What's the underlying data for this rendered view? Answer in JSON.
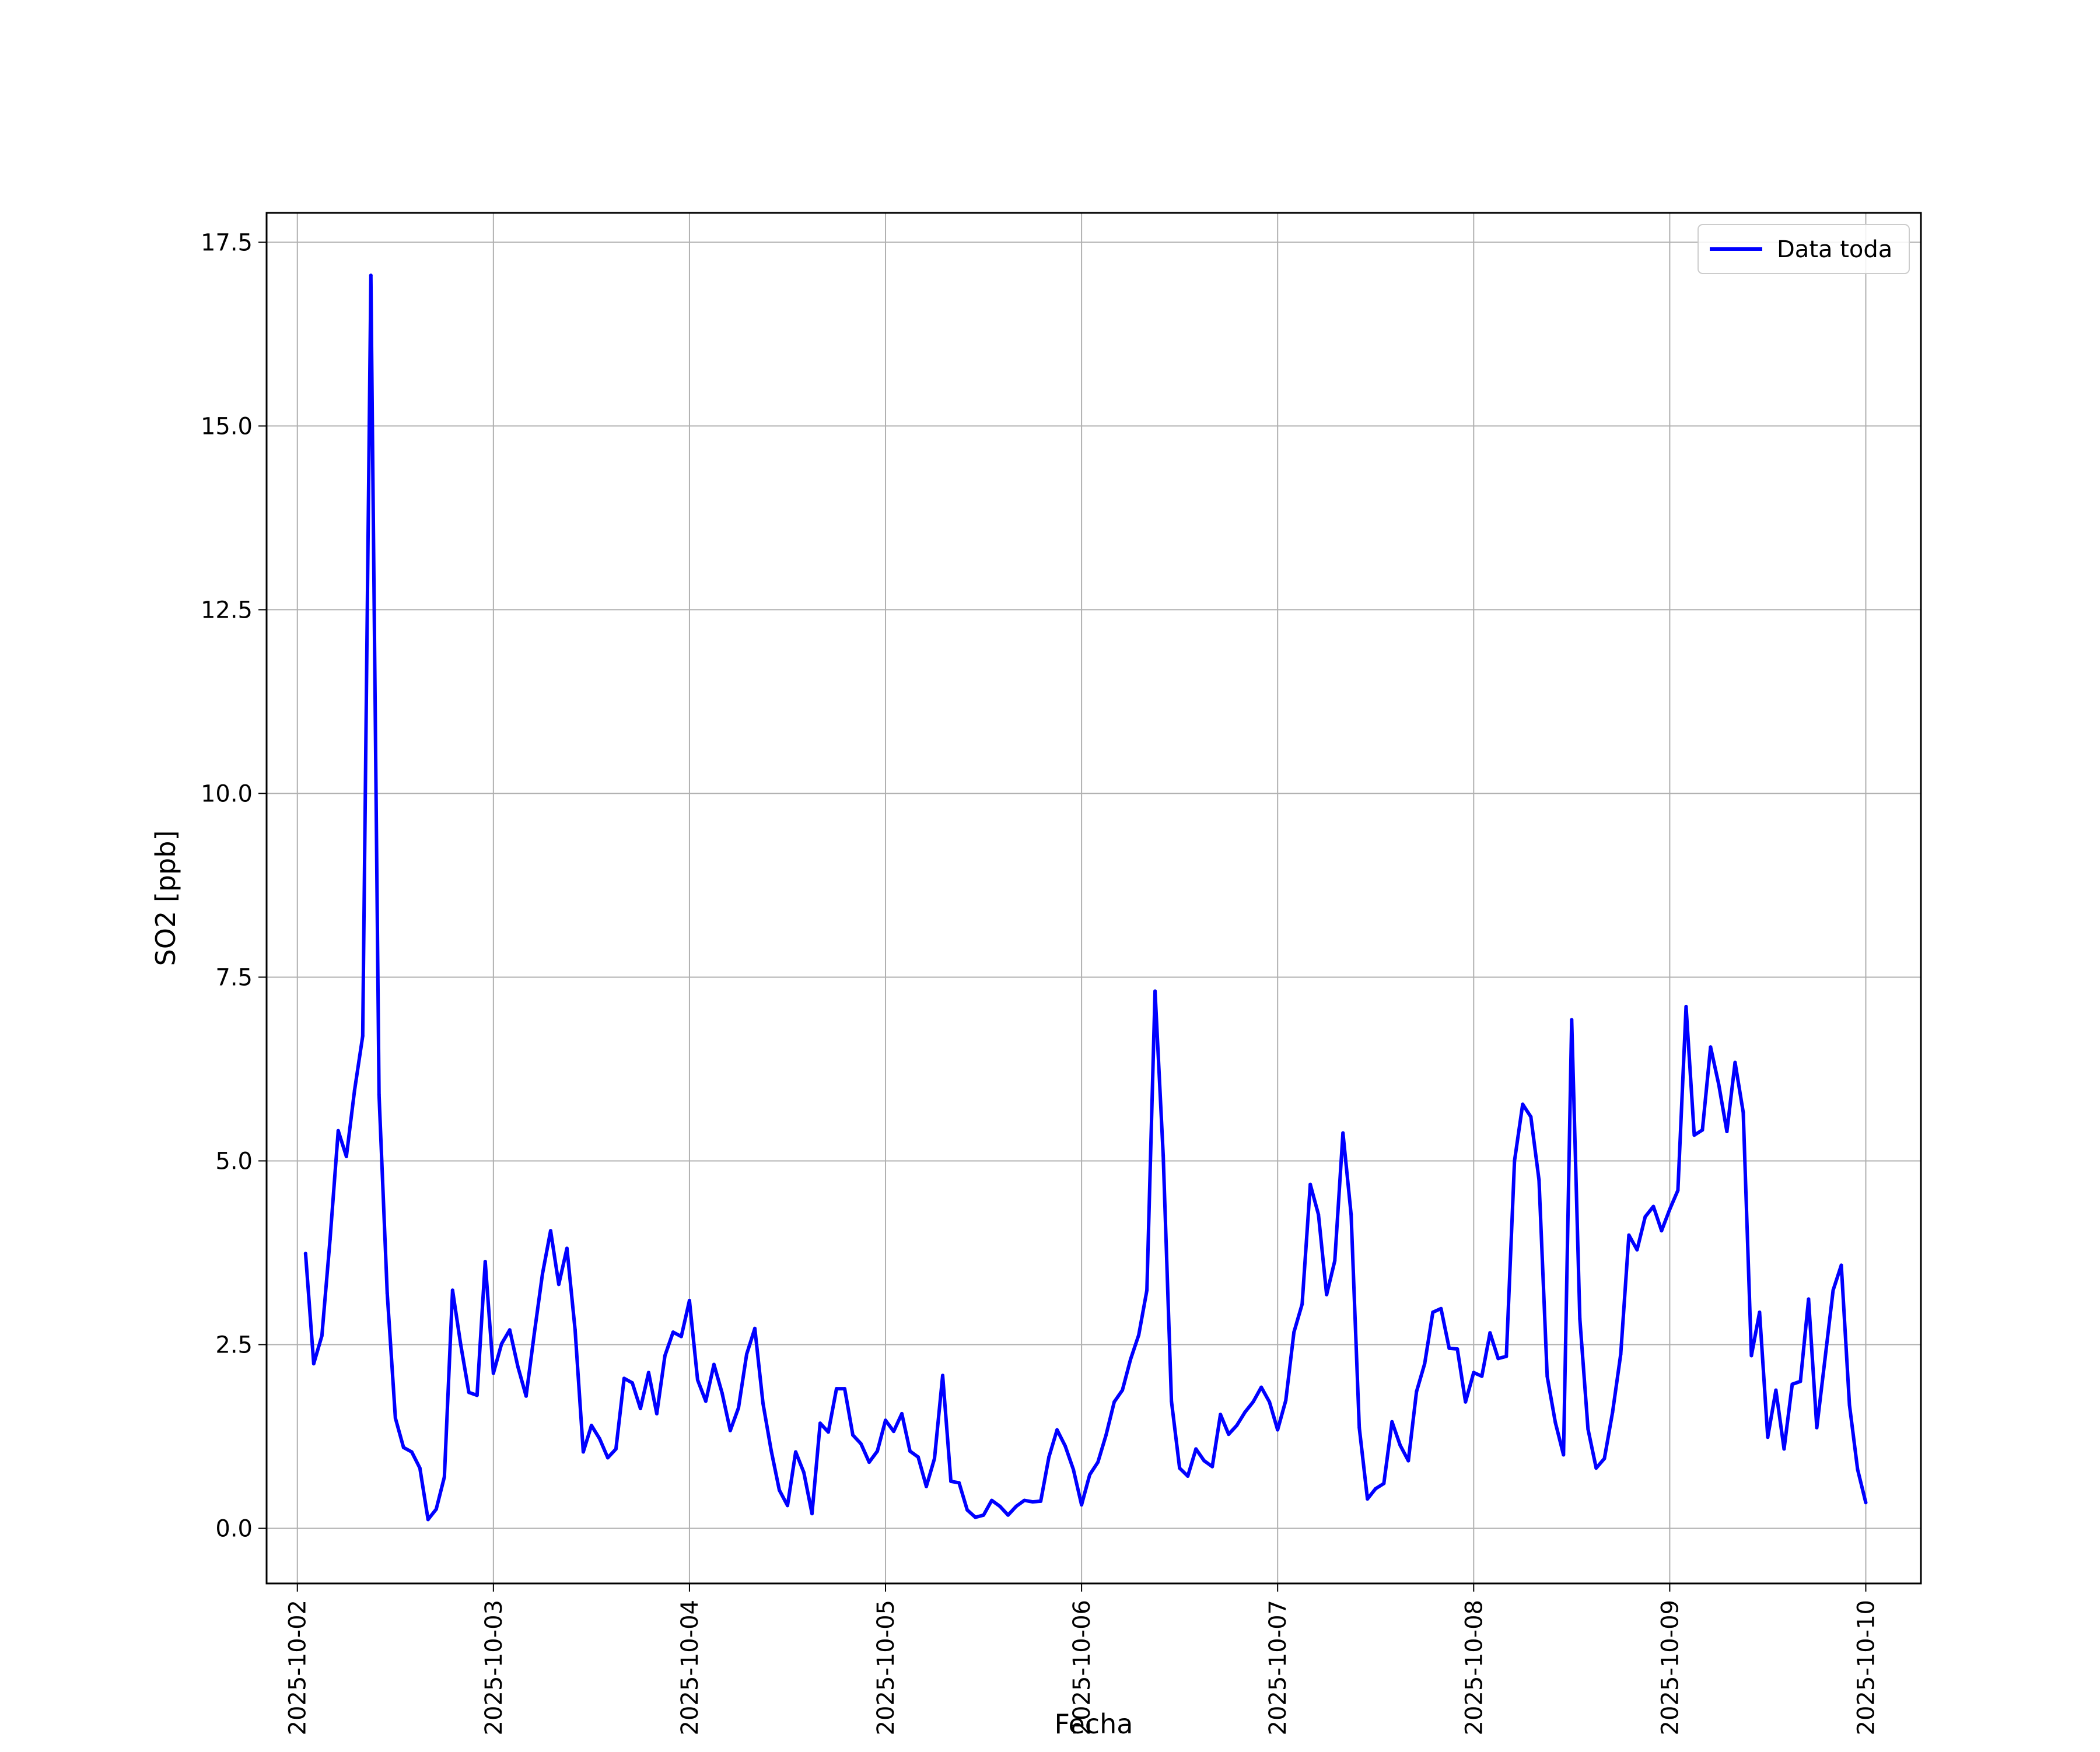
{
  "chart_data": {
    "type": "line",
    "xlabel": "Fecha",
    "ylabel": "SO2 [ppb]",
    "xlim": [
      "2025-10-01T20:14",
      "2025-10-10T06:45"
    ],
    "ylim": [
      -0.75,
      17.9
    ],
    "grid": true,
    "legend_position": "top-right",
    "x_ticks": [
      "2025-10-02",
      "2025-10-03",
      "2025-10-04",
      "2025-10-05",
      "2025-10-06",
      "2025-10-07",
      "2025-10-08",
      "2025-10-09",
      "2025-10-10"
    ],
    "y_ticks": [
      "0.0",
      "2.5",
      "5.0",
      "7.5",
      "10.0",
      "12.5",
      "15.0",
      "17.5"
    ],
    "series": [
      {
        "name": "Data toda",
        "color": "#0000ff",
        "x": [
          "2025-10-02T01:00",
          "2025-10-02T02:00",
          "2025-10-02T03:00",
          "2025-10-02T04:00",
          "2025-10-02T05:00",
          "2025-10-02T06:00",
          "2025-10-02T07:00",
          "2025-10-02T08:00",
          "2025-10-02T09:00",
          "2025-10-02T10:00",
          "2025-10-02T11:00",
          "2025-10-02T12:00",
          "2025-10-02T13:00",
          "2025-10-02T14:00",
          "2025-10-02T15:00",
          "2025-10-02T16:00",
          "2025-10-02T17:00",
          "2025-10-02T18:00",
          "2025-10-02T19:00",
          "2025-10-02T20:00",
          "2025-10-02T21:00",
          "2025-10-02T22:00",
          "2025-10-02T23:00",
          "2025-10-03T00:00",
          "2025-10-03T01:00",
          "2025-10-03T02:00",
          "2025-10-03T03:00",
          "2025-10-03T04:00",
          "2025-10-03T05:00",
          "2025-10-03T06:00",
          "2025-10-03T07:00",
          "2025-10-03T08:00",
          "2025-10-03T09:00",
          "2025-10-03T10:00",
          "2025-10-03T11:00",
          "2025-10-03T12:00",
          "2025-10-03T13:00",
          "2025-10-03T14:00",
          "2025-10-03T15:00",
          "2025-10-03T16:00",
          "2025-10-03T17:00",
          "2025-10-03T18:00",
          "2025-10-03T19:00",
          "2025-10-03T20:00",
          "2025-10-03T21:00",
          "2025-10-03T22:00",
          "2025-10-03T23:00",
          "2025-10-04T00:00",
          "2025-10-04T01:00",
          "2025-10-04T02:00",
          "2025-10-04T03:00",
          "2025-10-04T04:00",
          "2025-10-04T05:00",
          "2025-10-04T06:00",
          "2025-10-04T07:00",
          "2025-10-04T08:00",
          "2025-10-04T09:00",
          "2025-10-04T10:00",
          "2025-10-04T11:00",
          "2025-10-04T12:00",
          "2025-10-04T13:00",
          "2025-10-04T14:00",
          "2025-10-04T15:00",
          "2025-10-04T16:00",
          "2025-10-04T17:00",
          "2025-10-04T18:00",
          "2025-10-04T19:00",
          "2025-10-04T20:00",
          "2025-10-04T21:00",
          "2025-10-04T22:00",
          "2025-10-04T23:00",
          "2025-10-05T00:00",
          "2025-10-05T01:00",
          "2025-10-05T02:00",
          "2025-10-05T03:00",
          "2025-10-05T04:00",
          "2025-10-05T05:00",
          "2025-10-05T06:00",
          "2025-10-05T07:00",
          "2025-10-05T08:00",
          "2025-10-05T09:00",
          "2025-10-05T10:00",
          "2025-10-05T11:00",
          "2025-10-05T12:00",
          "2025-10-05T13:00",
          "2025-10-05T14:00",
          "2025-10-05T15:00",
          "2025-10-05T16:00",
          "2025-10-05T17:00",
          "2025-10-05T18:00",
          "2025-10-05T19:00",
          "2025-10-05T20:00",
          "2025-10-05T21:00",
          "2025-10-05T22:00",
          "2025-10-05T23:00",
          "2025-10-06T00:00",
          "2025-10-06T01:00",
          "2025-10-06T02:00",
          "2025-10-06T03:00",
          "2025-10-06T04:00",
          "2025-10-06T05:00",
          "2025-10-06T06:00",
          "2025-10-06T07:00",
          "2025-10-06T08:00",
          "2025-10-06T09:00",
          "2025-10-06T10:00",
          "2025-10-06T11:00",
          "2025-10-06T12:00",
          "2025-10-06T13:00",
          "2025-10-06T14:00",
          "2025-10-06T15:00",
          "2025-10-06T16:00",
          "2025-10-06T17:00",
          "2025-10-06T18:00",
          "2025-10-06T19:00",
          "2025-10-06T20:00",
          "2025-10-06T21:00",
          "2025-10-06T22:00",
          "2025-10-06T23:00",
          "2025-10-07T00:00",
          "2025-10-07T01:00",
          "2025-10-07T02:00",
          "2025-10-07T03:00",
          "2025-10-07T04:00",
          "2025-10-07T05:00",
          "2025-10-07T06:00",
          "2025-10-07T07:00",
          "2025-10-07T08:00",
          "2025-10-07T09:00",
          "2025-10-07T10:00",
          "2025-10-07T11:00",
          "2025-10-07T12:00",
          "2025-10-07T13:00",
          "2025-10-07T14:00",
          "2025-10-07T15:00",
          "2025-10-07T16:00",
          "2025-10-07T17:00",
          "2025-10-07T18:00",
          "2025-10-07T19:00",
          "2025-10-07T20:00",
          "2025-10-07T21:00",
          "2025-10-07T22:00",
          "2025-10-07T23:00",
          "2025-10-08T00:00",
          "2025-10-08T01:00",
          "2025-10-08T02:00",
          "2025-10-08T03:00",
          "2025-10-08T04:00",
          "2025-10-08T05:00",
          "2025-10-08T06:00",
          "2025-10-08T07:00",
          "2025-10-08T08:00",
          "2025-10-08T09:00",
          "2025-10-08T10:00",
          "2025-10-08T11:00",
          "2025-10-08T12:00",
          "2025-10-08T13:00",
          "2025-10-08T14:00",
          "2025-10-08T15:00",
          "2025-10-08T16:00",
          "2025-10-08T17:00",
          "2025-10-08T18:00",
          "2025-10-08T19:00",
          "2025-10-08T20:00",
          "2025-10-08T21:00",
          "2025-10-08T22:00",
          "2025-10-08T23:00",
          "2025-10-09T00:00",
          "2025-10-09T01:00",
          "2025-10-09T02:00",
          "2025-10-09T03:00",
          "2025-10-09T04:00",
          "2025-10-09T05:00",
          "2025-10-09T06:00",
          "2025-10-09T07:00",
          "2025-10-09T08:00",
          "2025-10-09T09:00",
          "2025-10-09T10:00",
          "2025-10-09T11:00",
          "2025-10-09T12:00",
          "2025-10-09T13:00",
          "2025-10-09T14:00",
          "2025-10-09T15:00",
          "2025-10-09T16:00",
          "2025-10-09T17:00",
          "2025-10-09T18:00",
          "2025-10-09T19:00",
          "2025-10-09T20:00",
          "2025-10-09T21:00",
          "2025-10-09T22:00",
          "2025-10-09T23:00",
          "2025-10-10T00:00"
        ],
        "values": [
          3.74,
          2.24,
          2.62,
          3.93,
          5.41,
          5.06,
          5.96,
          6.7,
          17.05,
          5.9,
          3.2,
          1.5,
          1.1,
          1.04,
          0.82,
          0.12,
          0.26,
          0.7,
          3.24,
          2.5,
          1.85,
          1.81,
          3.63,
          2.11,
          2.51,
          2.7,
          2.2,
          1.8,
          2.65,
          3.46,
          4.05,
          3.32,
          3.81,
          2.7,
          1.04,
          1.4,
          1.22,
          0.96,
          1.08,
          2.04,
          1.98,
          1.63,
          2.12,
          1.56,
          2.35,
          2.67,
          2.61,
          3.1,
          2.02,
          1.73,
          2.23,
          1.84,
          1.33,
          1.64,
          2.37,
          2.72,
          1.7,
          1.06,
          0.52,
          0.31,
          1.04,
          0.76,
          0.2,
          1.43,
          1.31,
          1.9,
          1.9,
          1.27,
          1.15,
          0.9,
          1.05,
          1.47,
          1.32,
          1.56,
          1.05,
          0.97,
          0.57,
          0.95,
          2.08,
          0.64,
          0.62,
          0.25,
          0.15,
          0.18,
          0.38,
          0.3,
          0.18,
          0.3,
          0.38,
          0.36,
          0.37,
          0.97,
          1.34,
          1.12,
          0.8,
          0.32,
          0.73,
          0.9,
          1.27,
          1.72,
          1.88,
          2.3,
          2.63,
          3.24,
          7.31,
          5.07,
          1.73,
          0.82,
          0.71,
          1.08,
          0.92,
          0.84,
          1.55,
          1.28,
          1.4,
          1.58,
          1.72,
          1.92,
          1.72,
          1.34,
          1.74,
          2.67,
          3.05,
          4.68,
          4.27,
          3.18,
          3.64,
          5.38,
          4.27,
          1.37,
          0.4,
          0.54,
          0.61,
          1.45,
          1.13,
          0.92,
          1.86,
          2.24,
          2.94,
          2.99,
          2.45,
          2.44,
          1.72,
          2.12,
          2.07,
          2.66,
          2.31,
          2.34,
          5.0,
          5.77,
          5.6,
          4.74,
          2.07,
          1.44,
          1.0,
          6.92,
          2.85,
          1.35,
          0.82,
          0.95,
          1.58,
          2.37,
          3.99,
          3.79,
          4.24,
          4.38,
          4.05,
          4.34,
          4.6,
          7.1,
          5.35,
          5.42,
          6.55,
          6.04,
          5.4,
          6.34,
          5.66,
          2.35,
          2.94,
          1.24,
          1.88,
          1.08,
          1.96,
          2.0,
          3.12,
          1.37,
          2.3,
          3.24,
          3.58,
          1.68,
          0.8,
          0.35
        ]
      }
    ]
  }
}
